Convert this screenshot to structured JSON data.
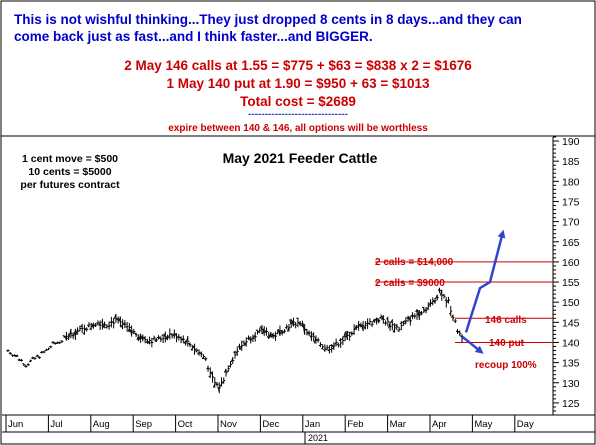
{
  "header": {
    "line1": "This is not wishful thinking...They just dropped 8 cents in 8 days...and they can",
    "line2": "come back just as fast...and I think faster...and BIGGER.",
    "calc1": "2 May 146 calls at 1.55 = $775 + $63 = $838 x  2 = $1676",
    "calc2": "1 May 140 put at 1.90 = $950 + 63 = $1013",
    "total": "Total cost = $2689",
    "rule": "------------------------------",
    "expire": "expire between 140 & 146, all options will be worthless"
  },
  "chart_data": {
    "type": "bar",
    "title": "May 2021 Feeder Cattle",
    "notes": [
      "1 cent move = $500",
      "10 cents = $5000",
      "per futures contract"
    ],
    "ylim": [
      122,
      191
    ],
    "y_ticks": [
      125,
      130,
      135,
      140,
      145,
      150,
      155,
      160,
      165,
      170,
      175,
      180,
      185,
      190
    ],
    "x_ticks": [
      "Jun",
      "Jul",
      "Aug",
      "Sep",
      "Oct",
      "Nov",
      "Dec",
      "Jan",
      "Feb",
      "Mar",
      "Apr",
      "May",
      "Day"
    ],
    "year_label": "2021",
    "price_path": [
      [
        0,
        138.0
      ],
      [
        4,
        136.5
      ],
      [
        8,
        134.5
      ],
      [
        12,
        136.0
      ],
      [
        16,
        137.5
      ],
      [
        20,
        139.5
      ],
      [
        24,
        140.5
      ],
      [
        28,
        142.0
      ],
      [
        32,
        143.0
      ],
      [
        36,
        144.0
      ],
      [
        40,
        145.0
      ],
      [
        44,
        144.5
      ],
      [
        48,
        145.5
      ],
      [
        52,
        144.0
      ],
      [
        56,
        142.5
      ],
      [
        60,
        141.0
      ],
      [
        64,
        140.5
      ],
      [
        68,
        141.0
      ],
      [
        72,
        142.0
      ],
      [
        76,
        141.5
      ],
      [
        80,
        140.0
      ],
      [
        84,
        138.0
      ],
      [
        88,
        136.0
      ],
      [
        90,
        132.0
      ],
      [
        92,
        130.0
      ],
      [
        94,
        129.0
      ],
      [
        96,
        131.0
      ],
      [
        98,
        134.0
      ],
      [
        102,
        138.0
      ],
      [
        106,
        140.5
      ],
      [
        110,
        142.0
      ],
      [
        114,
        143.0
      ],
      [
        118,
        141.5
      ],
      [
        122,
        143.0
      ],
      [
        126,
        144.5
      ],
      [
        130,
        145.0
      ],
      [
        134,
        142.0
      ],
      [
        138,
        140.0
      ],
      [
        142,
        138.5
      ],
      [
        146,
        139.5
      ],
      [
        150,
        141.0
      ],
      [
        154,
        143.0
      ],
      [
        158,
        144.5
      ],
      [
        162,
        145.0
      ],
      [
        166,
        146.0
      ],
      [
        170,
        144.5
      ],
      [
        174,
        143.5
      ],
      [
        178,
        145.5
      ],
      [
        182,
        147.0
      ],
      [
        186,
        148.5
      ],
      [
        190,
        150.5
      ],
      [
        192,
        153.0
      ],
      [
        194,
        151.0
      ],
      [
        196,
        150.0
      ],
      [
        198,
        146.5
      ],
      [
        200,
        143.0
      ],
      [
        202,
        141.5
      ]
    ],
    "price_lines": [
      {
        "label": "2 calls = $14,000",
        "value": 160,
        "color": "#cc0000"
      },
      {
        "label": "2 calls = $9000",
        "value": 155,
        "color": "#cc0000"
      },
      {
        "label": "146 calls",
        "value": 146,
        "color": "#cc0000"
      },
      {
        "label": "140 put",
        "value": 140,
        "color": "#cc0000"
      }
    ],
    "annotations": [
      {
        "text": "recoup 100%",
        "color": "#cc0000"
      }
    ],
    "arrow_up_path": [
      [
        0,
        142.5
      ],
      [
        1,
        153.5
      ],
      [
        2,
        155.0
      ],
      [
        3,
        167.5
      ]
    ],
    "arrow_down_path": [
      [
        0,
        141.5
      ],
      [
        1,
        137.5
      ]
    ],
    "arrow_color": "#3344cc"
  }
}
